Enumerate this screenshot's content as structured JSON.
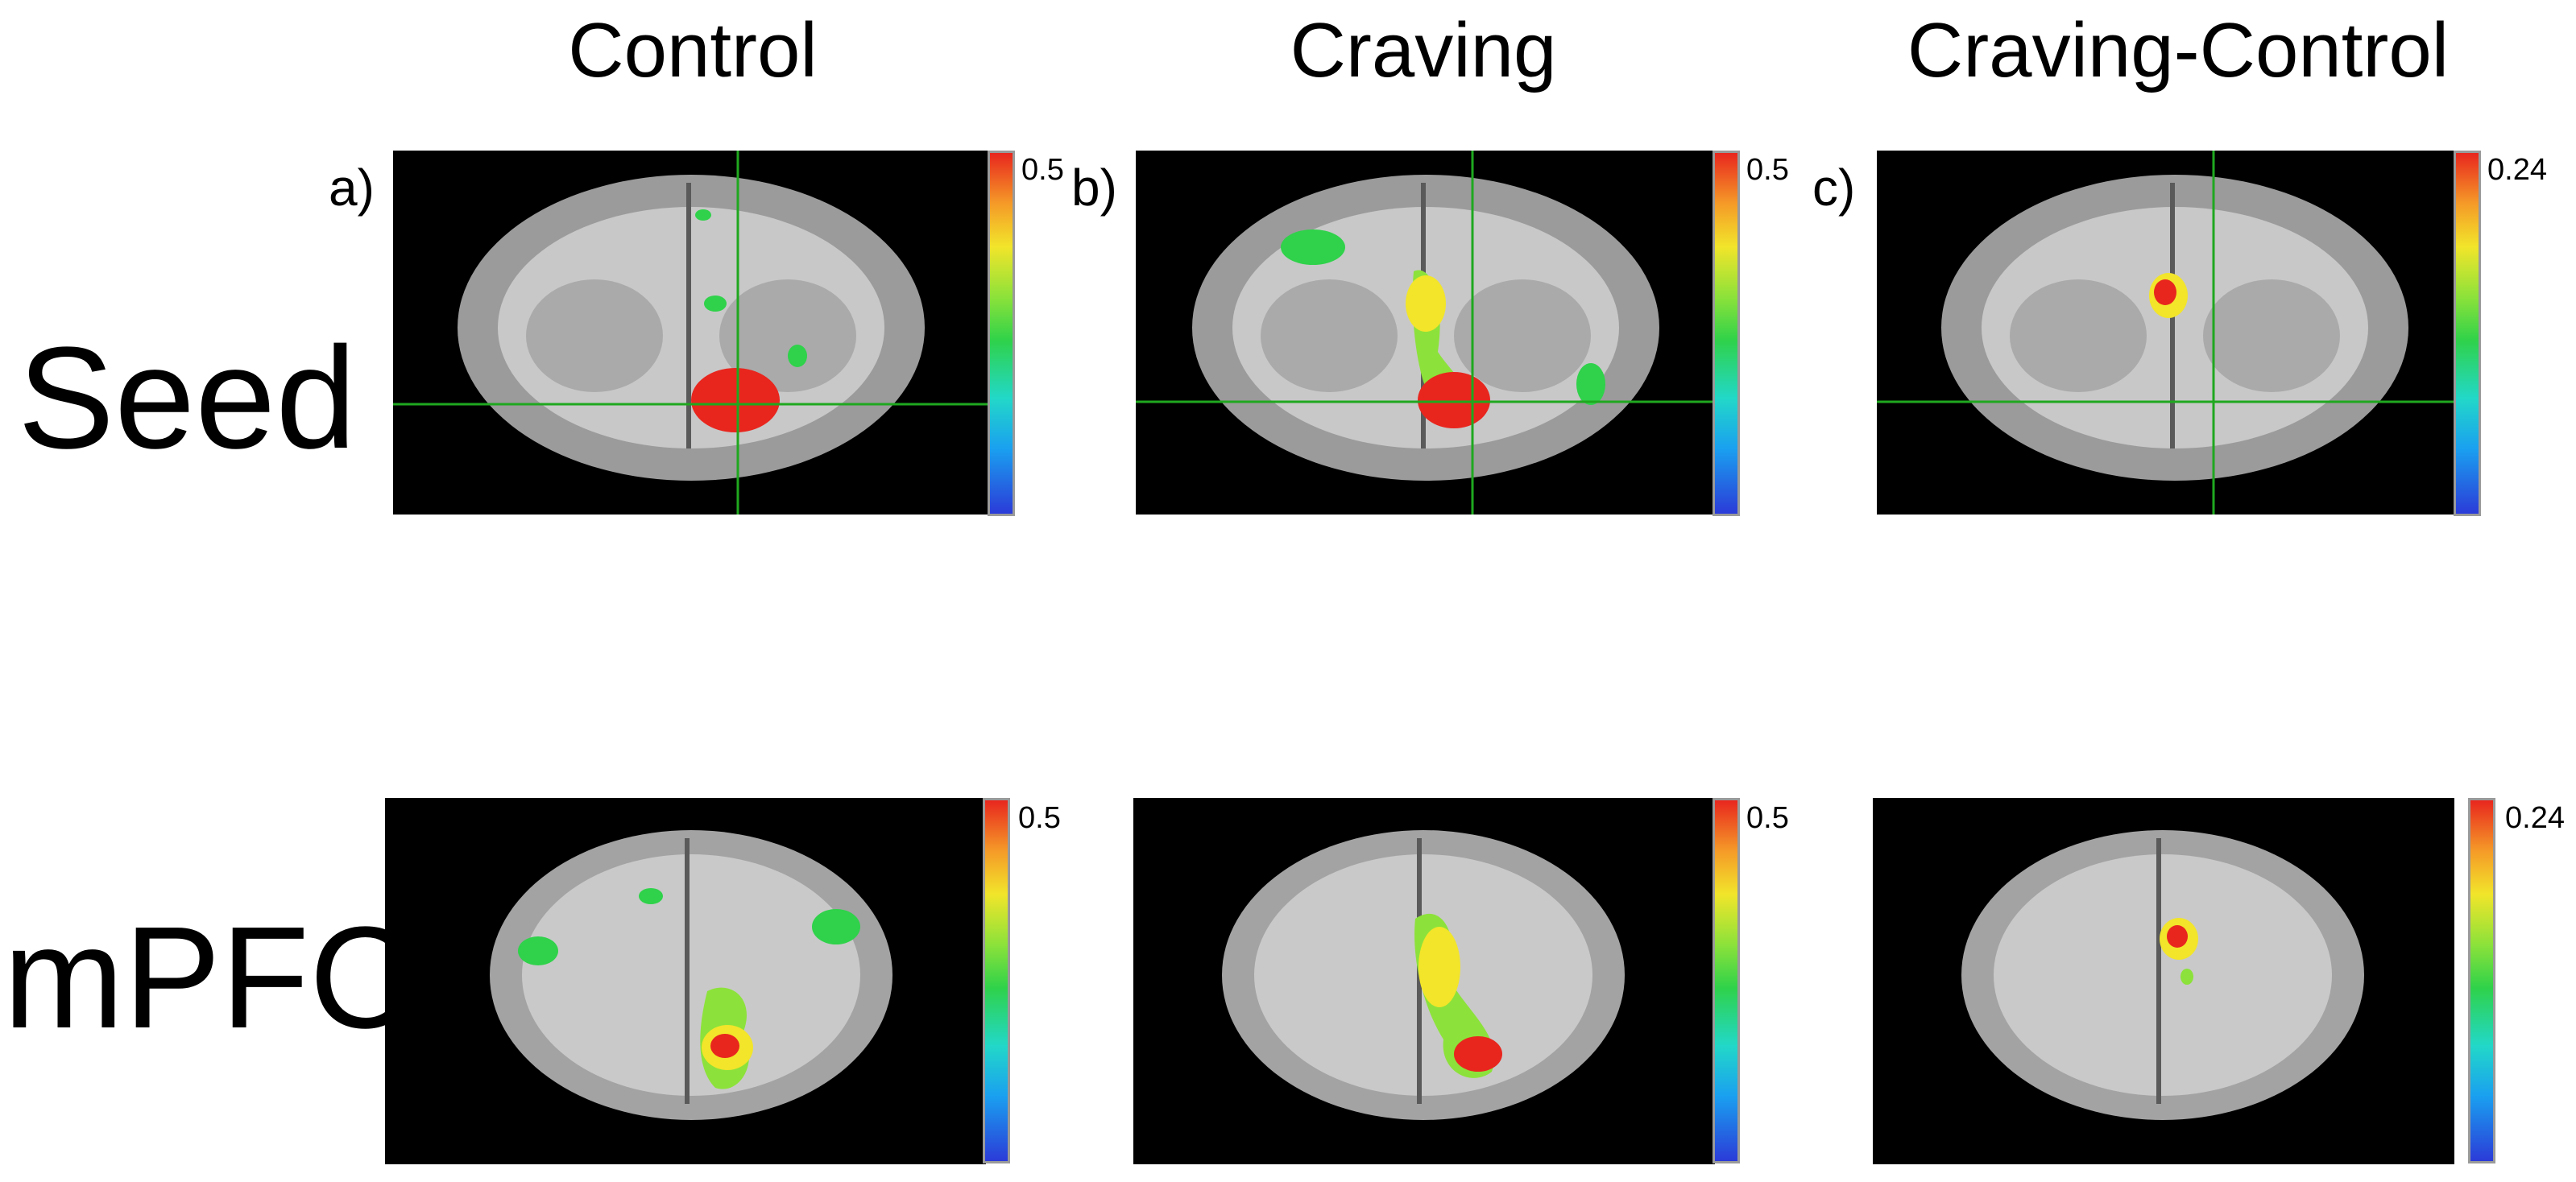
{
  "columns": [
    "Control",
    "Craving",
    "Craving-Control"
  ],
  "rows": [
    "Seed",
    "mPFC"
  ],
  "panel_labels": [
    "a)",
    "b)",
    "c)"
  ],
  "colorbar_max": [
    "0.5",
    "0.5",
    "0.24",
    "0.5",
    "0.5",
    "0.24"
  ],
  "colormap": [
    "#2b3bd8",
    "#1aa0f0",
    "#22d8c8",
    "#2fd24a",
    "#8ce23a",
    "#f2e52a",
    "#f59a28",
    "#e8261e"
  ]
}
